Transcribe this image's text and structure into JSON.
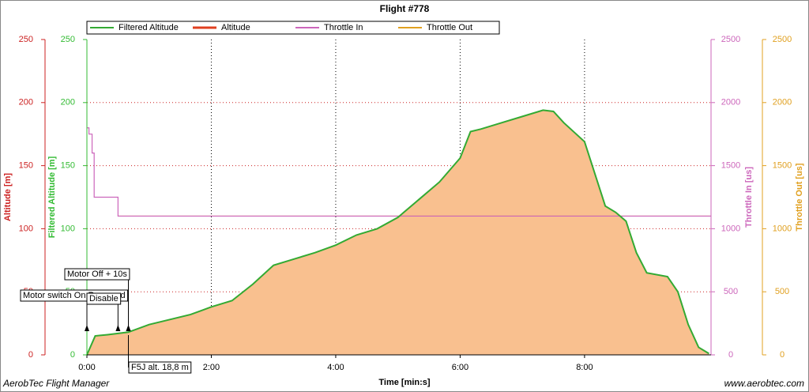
{
  "chart_data": {
    "type": "line",
    "title": "Flight #778",
    "xlabel": "Time [min:s]",
    "xlim": [
      0,
      602
    ],
    "xticks": [
      {
        "value": 0,
        "label": "0:00"
      },
      {
        "value": 120,
        "label": "2:00"
      },
      {
        "value": 240,
        "label": "4:00"
      },
      {
        "value": 360,
        "label": "6:00"
      },
      {
        "value": 480,
        "label": "8:00"
      }
    ],
    "grid": true,
    "axes": [
      {
        "label": "Altitude [m]",
        "color": "#cc2222",
        "lim": [
          0,
          250
        ],
        "ticks": [
          0,
          50,
          100,
          150,
          200,
          250
        ]
      },
      {
        "label": "Filtered Altitude [m]",
        "color": "#33bb33",
        "lim": [
          0,
          250
        ],
        "ticks": [
          0,
          50,
          100,
          150,
          200,
          250
        ]
      },
      {
        "label": "Throttle In [us]",
        "color": "#cc66bb",
        "lim": [
          0,
          2500
        ],
        "ticks": [
          0,
          500,
          1000,
          1500,
          2000,
          2500
        ]
      },
      {
        "label": "Throttle Out [us]",
        "color": "#e0a020",
        "lim": [
          0,
          2500
        ],
        "ticks": [
          0,
          500,
          1000,
          1500,
          2000,
          2500
        ]
      }
    ],
    "series": [
      {
        "name": "Filtered Altitude",
        "color": "#33aa33",
        "axis": 1,
        "style": "line",
        "x": [
          0,
          8,
          20,
          40,
          60,
          80,
          100,
          120,
          140,
          160,
          180,
          200,
          220,
          240,
          260,
          280,
          300,
          320,
          340,
          360,
          370,
          380,
          400,
          420,
          440,
          450,
          460,
          480,
          500,
          510,
          520,
          530,
          540,
          560,
          570,
          580,
          590,
          600
        ],
        "values": [
          0,
          15,
          16,
          18,
          24,
          28,
          32,
          38,
          43,
          56,
          71,
          76,
          81,
          87,
          95,
          100,
          109,
          123,
          137,
          156,
          177,
          179,
          184,
          189,
          194,
          193,
          184,
          169,
          118,
          113,
          106,
          81,
          65,
          62,
          50,
          24,
          6,
          1
        ]
      },
      {
        "name": "Altitude",
        "color": "#f9c08f",
        "axis": 0,
        "style": "area",
        "x": [
          0,
          8,
          20,
          40,
          60,
          80,
          100,
          120,
          140,
          160,
          180,
          200,
          220,
          240,
          260,
          280,
          300,
          320,
          340,
          360,
          370,
          380,
          400,
          420,
          440,
          450,
          460,
          480,
          500,
          510,
          520,
          530,
          540,
          560,
          570,
          580,
          590,
          600
        ],
        "values": [
          0,
          15,
          16,
          18,
          24,
          28,
          32,
          38,
          43,
          56,
          71,
          76,
          81,
          87,
          95,
          100,
          109,
          123,
          137,
          156,
          177,
          179,
          184,
          189,
          194,
          193,
          184,
          169,
          118,
          113,
          106,
          81,
          65,
          62,
          50,
          24,
          6,
          1
        ]
      },
      {
        "name": "Throttle In",
        "color": "#cc66bb",
        "axis": 2,
        "style": "step",
        "x": [
          0,
          2,
          5,
          7,
          30,
          602
        ],
        "values": [
          1800,
          1750,
          1600,
          1250,
          1100,
          1100
        ]
      },
      {
        "name": "Throttle Out",
        "color": "#e0a020",
        "axis": 3,
        "style": "step",
        "x": [
          30,
          602
        ],
        "values": [
          1100,
          1100
        ]
      }
    ],
    "annotations": [
      {
        "text": "Motor Off + 10s",
        "x": 40
      },
      {
        "text": "Motor switch On Reserved",
        "x": 0
      },
      {
        "text": "Disable",
        "x": 30
      },
      {
        "text": "F5J alt. 18,8 m",
        "x": 40
      }
    ],
    "footer_left": "AerobTec Flight Manager",
    "footer_right": "www.aerobtec.com"
  }
}
